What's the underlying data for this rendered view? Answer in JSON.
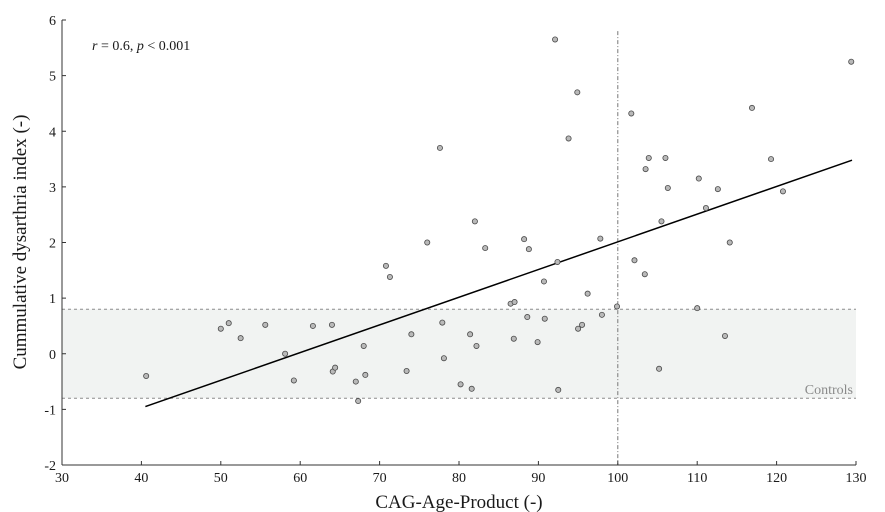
{
  "chart_data": {
    "type": "scatter",
    "xlabel": "CAG-Age-Product (-)",
    "ylabel": "Cummulative dysarthria index (-)",
    "xlim": [
      30,
      130
    ],
    "ylim": [
      -2,
      6
    ],
    "xticks": [
      "30",
      "40",
      "50",
      "60",
      "70",
      "80",
      "90",
      "100",
      "110",
      "120",
      "130"
    ],
    "yticks": [
      "-2",
      "-1",
      "0",
      "1",
      "2",
      "3",
      "4",
      "5",
      "6"
    ],
    "annotation": {
      "r_symbol": "r",
      "r_text": " = 0.6, ",
      "p_symbol": "p",
      "p_text": " < 0.001"
    },
    "controls_band": {
      "label": "Controls",
      "y_low": -0.8,
      "y_high": 0.8,
      "color": "#f1f3f2"
    },
    "vertical_reference": {
      "x": 100
    },
    "regression_line": {
      "x": [
        40.5,
        129.5
      ],
      "y": [
        -0.95,
        3.48
      ]
    },
    "point_color": "#b9b9b9",
    "points": [
      [
        40.6,
        -0.4
      ],
      [
        50,
        0.45
      ],
      [
        51,
        0.55
      ],
      [
        52.5,
        0.28
      ],
      [
        55.6,
        0.52
      ],
      [
        58.1,
        0.0
      ],
      [
        59.2,
        -0.48
      ],
      [
        61.6,
        0.5
      ],
      [
        64,
        0.52
      ],
      [
        64.1,
        -0.32
      ],
      [
        64.4,
        -0.25
      ],
      [
        67,
        -0.5
      ],
      [
        67.3,
        -0.85
      ],
      [
        68,
        0.14
      ],
      [
        68.2,
        -0.38
      ],
      [
        70.8,
        1.58
      ],
      [
        71.3,
        1.38
      ],
      [
        73.4,
        -0.31
      ],
      [
        74,
        0.35
      ],
      [
        76,
        2.0
      ],
      [
        77.6,
        3.7
      ],
      [
        77.9,
        0.56
      ],
      [
        78.1,
        -0.08
      ],
      [
        80.2,
        -0.55
      ],
      [
        81.4,
        0.35
      ],
      [
        81.6,
        -0.63
      ],
      [
        82,
        2.38
      ],
      [
        82.2,
        0.14
      ],
      [
        83.3,
        1.9
      ],
      [
        86.5,
        0.9
      ],
      [
        86.9,
        0.27
      ],
      [
        87,
        0.93
      ],
      [
        88.2,
        2.06
      ],
      [
        88.6,
        0.66
      ],
      [
        88.8,
        1.88
      ],
      [
        89.9,
        0.21
      ],
      [
        90.7,
        1.3
      ],
      [
        90.8,
        0.63
      ],
      [
        92.1,
        5.65
      ],
      [
        92.4,
        1.65
      ],
      [
        92.5,
        -0.65
      ],
      [
        93.8,
        3.87
      ],
      [
        94.9,
        4.7
      ],
      [
        95,
        0.45
      ],
      [
        95.5,
        0.52
      ],
      [
        96.2,
        1.08
      ],
      [
        97.8,
        2.07
      ],
      [
        98,
        0.7
      ],
      [
        99.9,
        0.85
      ],
      [
        101.7,
        4.32
      ],
      [
        102.1,
        1.68
      ],
      [
        103.4,
        1.43
      ],
      [
        103.5,
        3.32
      ],
      [
        103.9,
        3.52
      ],
      [
        105.2,
        -0.27
      ],
      [
        105.5,
        2.38
      ],
      [
        106,
        3.52
      ],
      [
        106.3,
        2.98
      ],
      [
        110,
        0.82
      ],
      [
        110.2,
        3.15
      ],
      [
        111.1,
        2.62
      ],
      [
        112.6,
        2.96
      ],
      [
        113.5,
        0.32
      ],
      [
        114.1,
        2.0
      ],
      [
        116.9,
        4.42
      ],
      [
        119.3,
        3.5
      ],
      [
        120.8,
        2.92
      ],
      [
        129.4,
        5.25
      ]
    ]
  }
}
